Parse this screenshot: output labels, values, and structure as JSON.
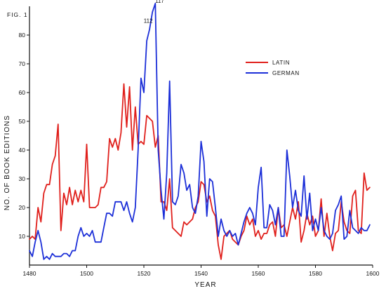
{
  "chart_data": {
    "type": "line",
    "figure_label": "FIG. 1",
    "xlabel": "YEAR",
    "ylabel": "NO. OF BOOK EDITIONS",
    "xlim": [
      1480,
      1600
    ],
    "ylim": [
      0,
      90
    ],
    "xticks": [
      1480,
      1500,
      1520,
      1540,
      1560,
      1580,
      1600
    ],
    "xtick_labels": [
      "1480",
      "1500",
      "1520",
      "1540",
      "1560",
      "1580",
      "1600"
    ],
    "yticks": [
      10,
      20,
      30,
      40,
      50,
      60,
      70,
      80
    ],
    "ytick_labels": [
      "10",
      "20",
      "30",
      "40",
      "50",
      "60",
      "70",
      "80"
    ],
    "legend_position": "upper-right",
    "annotations": [
      {
        "text": "117",
        "x": 1526,
        "y": 91
      },
      {
        "text": "112",
        "x": 1522,
        "y": 84
      }
    ],
    "series": [
      {
        "name": "LATIN",
        "color": "#e0201c",
        "x": [
          1480,
          1481,
          1482,
          1483,
          1484,
          1485,
          1486,
          1487,
          1488,
          1489,
          1490,
          1491,
          1492,
          1493,
          1494,
          1495,
          1496,
          1497,
          1498,
          1499,
          1500,
          1501,
          1502,
          1503,
          1504,
          1505,
          1506,
          1507,
          1508,
          1509,
          1510,
          1511,
          1512,
          1513,
          1514,
          1515,
          1516,
          1517,
          1518,
          1519,
          1520,
          1521,
          1522,
          1523,
          1524,
          1525,
          1526,
          1527,
          1528,
          1529,
          1530,
          1531,
          1532,
          1533,
          1534,
          1535,
          1536,
          1537,
          1538,
          1539,
          1540,
          1541,
          1542,
          1543,
          1544,
          1545,
          1546,
          1547,
          1548,
          1549,
          1550,
          1551,
          1552,
          1553,
          1554,
          1555,
          1556,
          1557,
          1558,
          1559,
          1560,
          1561,
          1562,
          1563,
          1564,
          1565,
          1566,
          1567,
          1568,
          1569,
          1570,
          1571,
          1572,
          1573,
          1574,
          1575,
          1576,
          1577,
          1578,
          1579,
          1580,
          1581,
          1582,
          1583,
          1584,
          1585,
          1586,
          1587,
          1588,
          1589,
          1590,
          1591,
          1592,
          1593,
          1594,
          1595,
          1596,
          1597,
          1598,
          1599
        ],
        "values": [
          9,
          10,
          9,
          20,
          15,
          25,
          28,
          28,
          35,
          38,
          49,
          12,
          25,
          21,
          27,
          21,
          26,
          22,
          26,
          22,
          42,
          20,
          20,
          20,
          21,
          27,
          27,
          29,
          44,
          41,
          44,
          40,
          46,
          63,
          48,
          62,
          40,
          55,
          42,
          43,
          42,
          52,
          51,
          50,
          41,
          45,
          22,
          22,
          19,
          30,
          13,
          12,
          11,
          10,
          15,
          14,
          15,
          16,
          20,
          22,
          29,
          28,
          22,
          24,
          19,
          17,
          7,
          2,
          10,
          11,
          12,
          9,
          8,
          7,
          10,
          12,
          17,
          14,
          16,
          10,
          12,
          9,
          11,
          11,
          14,
          15,
          10,
          20,
          13,
          14,
          10,
          15,
          20,
          16,
          22,
          8,
          12,
          18,
          14,
          17,
          10,
          12,
          23,
          10,
          18,
          10,
          5,
          11,
          12,
          22,
          15,
          12,
          11,
          24,
          26,
          12,
          11,
          32,
          26,
          27
        ]
      },
      {
        "name": "GERMAN",
        "color": "#1c2fd8",
        "x": [
          1480,
          1481,
          1482,
          1483,
          1484,
          1485,
          1486,
          1487,
          1488,
          1489,
          1490,
          1491,
          1492,
          1493,
          1494,
          1495,
          1496,
          1497,
          1498,
          1499,
          1500,
          1501,
          1502,
          1503,
          1504,
          1505,
          1506,
          1507,
          1508,
          1509,
          1510,
          1511,
          1512,
          1513,
          1514,
          1515,
          1516,
          1517,
          1518,
          1519,
          1520,
          1521,
          1522,
          1523,
          1524,
          1525,
          1526,
          1527,
          1528,
          1529,
          1530,
          1531,
          1532,
          1533,
          1534,
          1535,
          1536,
          1537,
          1538,
          1539,
          1540,
          1541,
          1542,
          1543,
          1544,
          1545,
          1546,
          1547,
          1548,
          1549,
          1550,
          1551,
          1552,
          1553,
          1554,
          1555,
          1556,
          1557,
          1558,
          1559,
          1560,
          1561,
          1562,
          1563,
          1564,
          1565,
          1566,
          1567,
          1568,
          1569,
          1570,
          1571,
          1572,
          1573,
          1574,
          1575,
          1576,
          1577,
          1578,
          1579,
          1580,
          1581,
          1582,
          1583,
          1584,
          1585,
          1586,
          1587,
          1588,
          1589,
          1590,
          1591,
          1592,
          1593,
          1594,
          1595,
          1596,
          1597,
          1598,
          1599
        ],
        "values": [
          5,
          3,
          8,
          12,
          8,
          2,
          3,
          2,
          4,
          3,
          3,
          3,
          4,
          4,
          3,
          5,
          5,
          10,
          13,
          10,
          11,
          10,
          12,
          8,
          8,
          8,
          13,
          18,
          18,
          17,
          22,
          22,
          22,
          19,
          22,
          18,
          15,
          20,
          40,
          65,
          60,
          78,
          82,
          88,
          91,
          40,
          26,
          16,
          32,
          64,
          22,
          21,
          24,
          35,
          32,
          26,
          28,
          20,
          18,
          24,
          43,
          36,
          17,
          30,
          29,
          20,
          10,
          16,
          12,
          10,
          12,
          10,
          11,
          7,
          11,
          15,
          18,
          20,
          18,
          14,
          27,
          34,
          13,
          13,
          21,
          19,
          14,
          20,
          10,
          10,
          40,
          31,
          20,
          26,
          19,
          17,
          31,
          16,
          25,
          12,
          16,
          12,
          20,
          12,
          10,
          9,
          11,
          19,
          21,
          24,
          9,
          10,
          19,
          13,
          12,
          11,
          13,
          12,
          12,
          14
        ]
      }
    ]
  }
}
